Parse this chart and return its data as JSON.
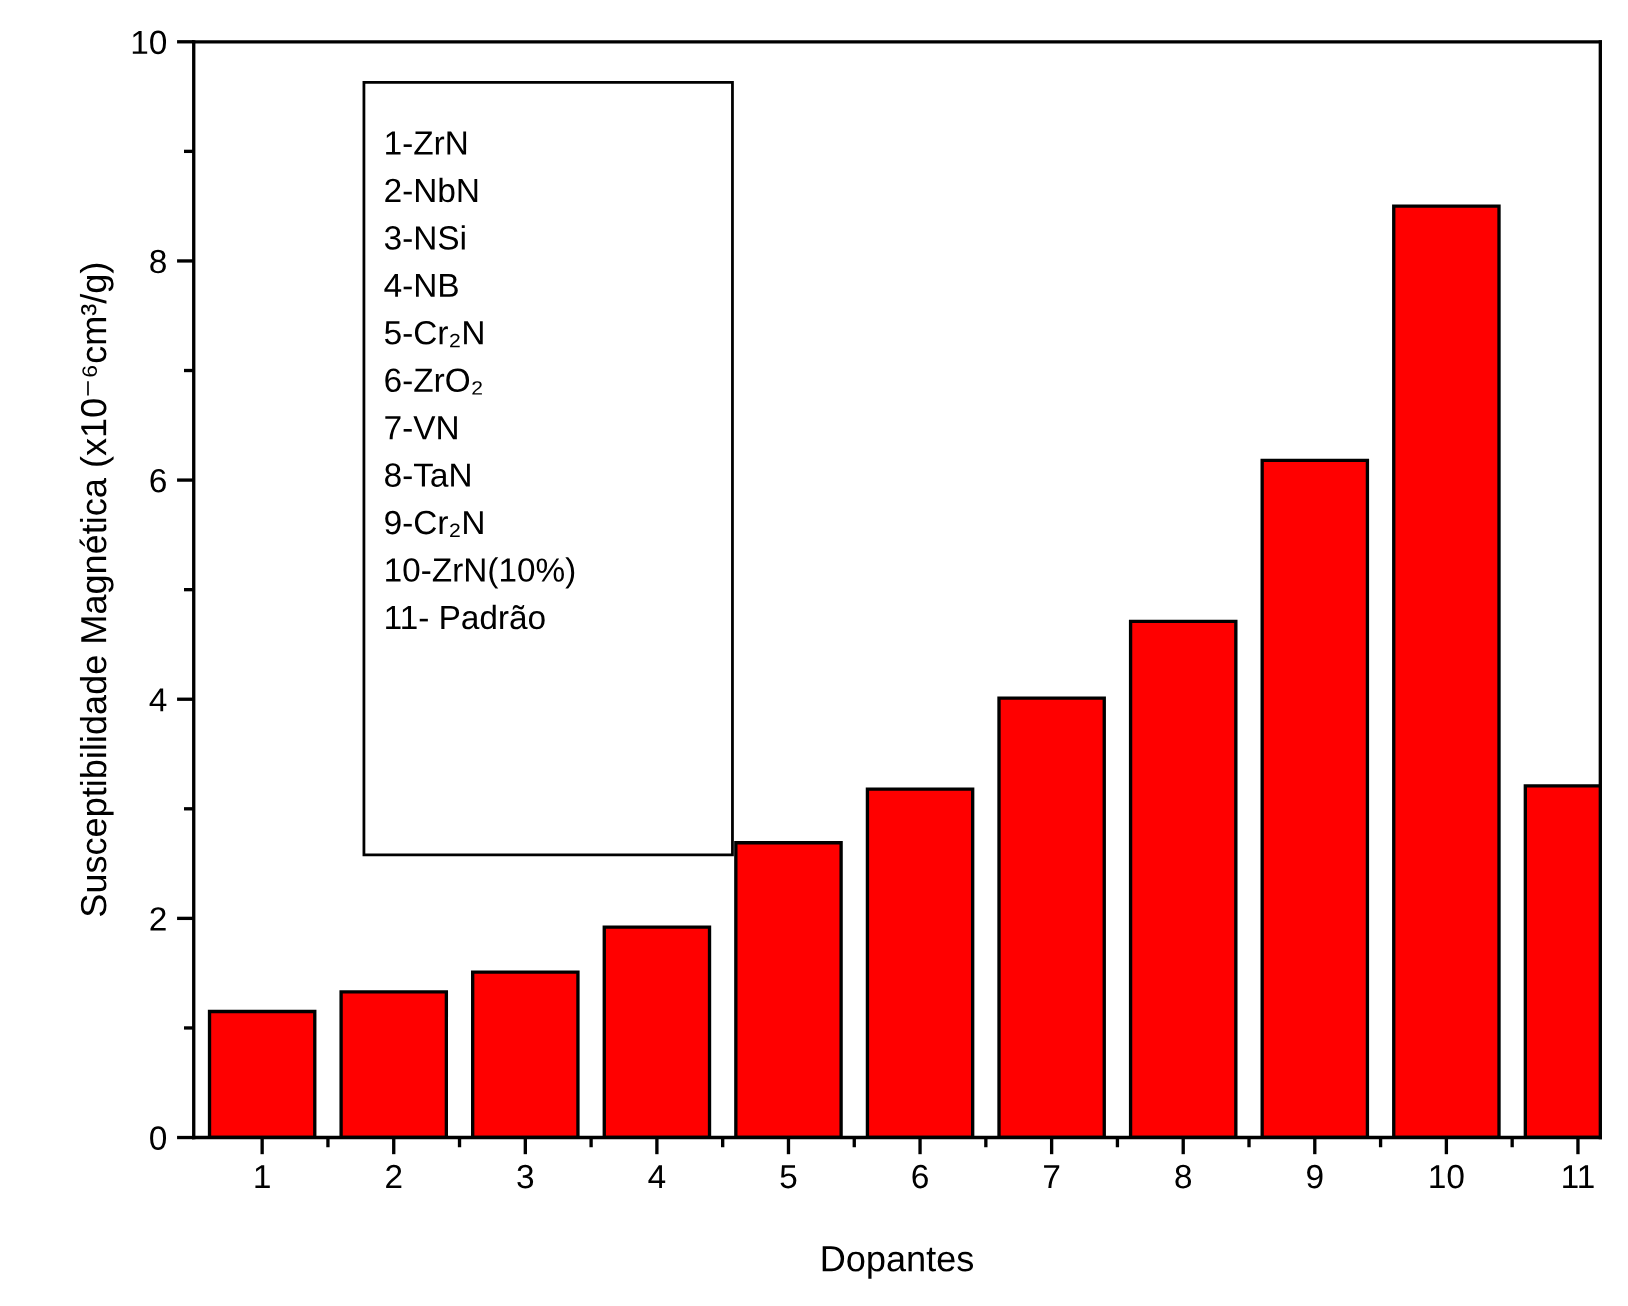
{
  "chart_data": {
    "type": "bar",
    "xlabel": "Dopantes",
    "ylabel": "Susceptibilidade Magnética (x10⁻⁶cm³/g)",
    "categories": [
      "1",
      "2",
      "3",
      "4",
      "5",
      "6",
      "7",
      "8",
      "9",
      "10",
      "11"
    ],
    "values": [
      1.15,
      1.33,
      1.51,
      1.92,
      2.69,
      3.18,
      4.01,
      4.71,
      6.18,
      8.5,
      3.21
    ],
    "color": "#ff0000",
    "ylim": [
      0,
      10
    ],
    "yticks": [
      0,
      2,
      4,
      6,
      8,
      10
    ],
    "grid": false,
    "annotations": [
      "1-ZrN",
      "2-NbN",
      "3-NSi",
      "4-NB",
      "5-Cr₂N",
      "6-ZrO₂",
      "7-VN",
      "8-TaN",
      "9-Cr₂N",
      "10-ZrN(10%)",
      "11- Padrão"
    ]
  }
}
